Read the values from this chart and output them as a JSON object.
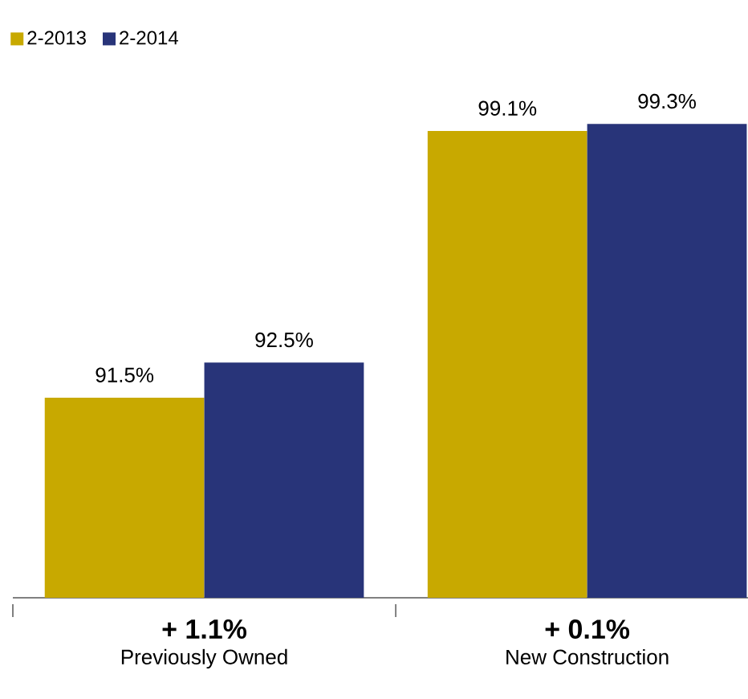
{
  "chart_data": {
    "type": "bar",
    "categories": [
      "Previously Owned",
      "New Construction"
    ],
    "series": [
      {
        "name": "2-2013",
        "color": "#c8a900",
        "values": [
          91.5,
          99.1
        ],
        "value_labels": [
          "91.5%",
          "99.1%"
        ]
      },
      {
        "name": "2-2014",
        "color": "#283479",
        "values": [
          92.5,
          99.3
        ],
        "value_labels": [
          "92.5%",
          "99.3%"
        ]
      }
    ],
    "ylim": [
      85.8,
      99.3
    ],
    "legend": "top left",
    "annotations": [
      "+ 1.1%",
      "+ 0.1%"
    ]
  }
}
